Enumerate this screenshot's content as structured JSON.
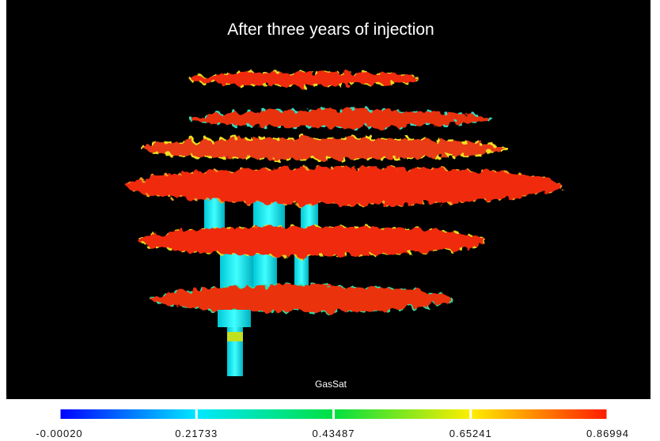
{
  "title": "After three  years of injection",
  "colorbar": {
    "label": "GasSat",
    "ticks": [
      "-0.00020",
      "0.21733",
      "0.43487",
      "0.65241",
      "0.86994"
    ]
  }
}
